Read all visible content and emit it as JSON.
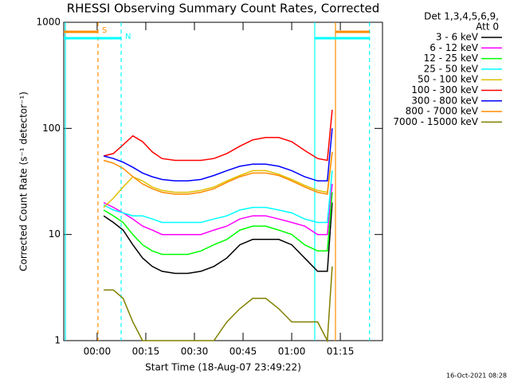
{
  "chart_data": {
    "type": "line",
    "title": "RHESSI Observing Summary Count Rates, Corrected",
    "x_label": "Start Time (18-Aug-07 23:49:22)",
    "y_label": "Corrected Count Rate (s⁻¹ detector⁻¹)",
    "legend_title": [
      "Det 1,3,4,5,6,9,",
      "Att 0"
    ],
    "footer": "16-Oct-2021 08:28",
    "y_log": true,
    "xlim": [
      -10.3,
      88
    ],
    "ylim": [
      1,
      1000
    ],
    "xticks": [
      {
        "value": 0,
        "label": "00:00"
      },
      {
        "value": 15,
        "label": "00:15"
      },
      {
        "value": 30,
        "label": "00:30"
      },
      {
        "value": 45,
        "label": "00:45"
      },
      {
        "value": 60,
        "label": "01:00"
      },
      {
        "value": 75,
        "label": "01:15"
      }
    ],
    "yticks": [
      1,
      10,
      100,
      1000
    ],
    "x": [
      2,
      5,
      8,
      11,
      14,
      17,
      20,
      24,
      28,
      32,
      36,
      40,
      44,
      48,
      52,
      56,
      60,
      64,
      68,
      71,
      72.5
    ],
    "series": [
      {
        "name": "3 - 6 keV",
        "color": "#000000",
        "values": [
          15,
          13,
          11,
          8,
          6,
          5,
          4.5,
          4.3,
          4.3,
          4.5,
          5,
          6,
          8,
          9,
          9,
          9,
          8,
          6,
          4.5,
          4.5,
          20
        ]
      },
      {
        "name": "6 - 12 keV",
        "color": "#ff00ff",
        "values": [
          20,
          18,
          16,
          14,
          12,
          11,
          10,
          10,
          10,
          10,
          11,
          12,
          14,
          15,
          15,
          14,
          13,
          12,
          10,
          10,
          30
        ]
      },
      {
        "name": "12 - 25 keV",
        "color": "#00ff00",
        "values": [
          17,
          15,
          13,
          10,
          8,
          7,
          6.5,
          6.5,
          6.5,
          7,
          8,
          9,
          11,
          12,
          12,
          11,
          10,
          8,
          7,
          7,
          25
        ]
      },
      {
        "name": "25 - 50 keV",
        "color": "#00ffff",
        "values": [
          19,
          17,
          16,
          15,
          15,
          14,
          13,
          13,
          13,
          13,
          14,
          15,
          17,
          18,
          18,
          17,
          16,
          14,
          13,
          13,
          40
        ]
      },
      {
        "name": "50 - 100 keV",
        "color": "#e0c000",
        "values": [
          18,
          22,
          28,
          35,
          32,
          28,
          26,
          25,
          25,
          26,
          28,
          32,
          36,
          40,
          40,
          37,
          33,
          29,
          26,
          25,
          60
        ]
      },
      {
        "name": "100 - 300 keV",
        "color": "#ff0000",
        "values": [
          55,
          58,
          70,
          85,
          75,
          60,
          52,
          50,
          50,
          50,
          52,
          58,
          68,
          78,
          82,
          82,
          75,
          62,
          52,
          50,
          150
        ]
      },
      {
        "name": "300 - 800 keV",
        "color": "#0000ff",
        "values": [
          55,
          52,
          48,
          43,
          38,
          35,
          33,
          32,
          32,
          33,
          36,
          40,
          44,
          46,
          46,
          44,
          40,
          35,
          32,
          32,
          100
        ]
      },
      {
        "name": "800 - 7000 keV",
        "color": "#ff8c00",
        "values": [
          50,
          47,
          42,
          35,
          30,
          27,
          25,
          24,
          24,
          25,
          27,
          31,
          35,
          38,
          38,
          36,
          32,
          28,
          25,
          24,
          60
        ]
      },
      {
        "name": "7000 - 15000 keV",
        "color": "#808000",
        "values": [
          3,
          3,
          2.5,
          1.5,
          1,
          1,
          1,
          1,
          1,
          1,
          1,
          1.5,
          2,
          2.5,
          2.5,
          2,
          1.5,
          1.5,
          1.5,
          1,
          5
        ]
      }
    ],
    "markers": [
      {
        "x": -9.8,
        "color": "#00ffff",
        "style": "solid"
      },
      {
        "x": 0.25,
        "color": "#ff8c00",
        "style": "dashed"
      },
      {
        "x": 7.4,
        "color": "#00ffff",
        "style": "dashed"
      },
      {
        "x": 67.1,
        "color": "#00ffff",
        "style": "solid"
      },
      {
        "x": 73.5,
        "color": "#ff8c00",
        "style": "solid"
      },
      {
        "x": 84,
        "color": "#00ffff",
        "style": "dashed"
      }
    ],
    "flag_bars": [
      {
        "label": "S",
        "x": [
          -10.3,
          0.25
        ],
        "y": 813,
        "color": "#ff8c00"
      },
      {
        "label": "N",
        "x": [
          -10.3,
          7.4
        ],
        "y": 708,
        "color": "#00ffff"
      },
      {
        "x": [
          73.5,
          84
        ],
        "y": 813,
        "color": "#ff8c00"
      },
      {
        "x": [
          67.1,
          84
        ],
        "y": 708,
        "color": "#00ffff"
      }
    ]
  }
}
